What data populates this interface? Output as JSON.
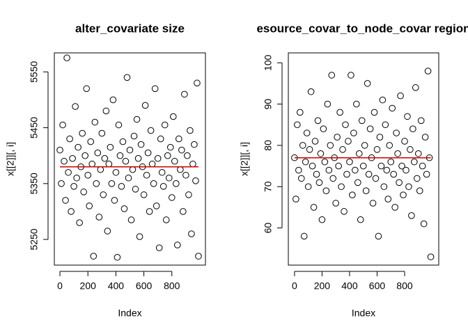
{
  "chart_data": [
    {
      "type": "scatter",
      "title": "alter_covariate size",
      "xlabel": "Index",
      "ylabel": "x[[2]][, i]",
      "x": [
        0,
        10,
        20,
        30,
        40,
        50,
        60,
        70,
        80,
        90,
        100,
        110,
        120,
        130,
        140,
        150,
        160,
        170,
        180,
        190,
        200,
        210,
        220,
        230,
        240,
        250,
        260,
        270,
        280,
        290,
        300,
        310,
        320,
        330,
        340,
        350,
        360,
        370,
        380,
        390,
        400,
        410,
        420,
        430,
        440,
        450,
        460,
        470,
        480,
        490,
        500,
        510,
        520,
        530,
        540,
        550,
        560,
        570,
        580,
        590,
        600,
        610,
        620,
        630,
        640,
        650,
        660,
        670,
        680,
        690,
        700,
        710,
        720,
        730,
        740,
        750,
        760,
        770,
        780,
        790,
        800,
        810,
        820,
        830,
        840,
        850,
        860,
        870,
        880,
        890,
        900,
        910,
        920,
        930,
        940,
        950,
        960,
        970,
        980,
        990
      ],
      "values": [
        5410,
        5350,
        5455,
        5390,
        5320,
        5575,
        5370,
        5430,
        5300,
        5395,
        5345,
        5488,
        5360,
        5415,
        5280,
        5380,
        5440,
        5335,
        5400,
        5520,
        5365,
        5310,
        5425,
        5385,
        5220,
        5460,
        5350,
        5405,
        5290,
        5375,
        5440,
        5330,
        5395,
        5480,
        5265,
        5385,
        5415,
        5350,
        5500,
        5320,
        5370,
        5218,
        5455,
        5400,
        5345,
        5425,
        5305,
        5390,
        5540,
        5360,
        5410,
        5285,
        5375,
        5435,
        5340,
        5465,
        5395,
        5255,
        5420,
        5380,
        5330,
        5490,
        5365,
        5405,
        5300,
        5445,
        5385,
        5350,
        5520,
        5310,
        5395,
        5235,
        5430,
        5370,
        5345,
        5455,
        5285,
        5400,
        5360,
        5415,
        5325,
        5470,
        5390,
        5350,
        5240,
        5430,
        5375,
        5410,
        5300,
        5510,
        5365,
        5400,
        5330,
        5445,
        5260,
        5385,
        5420,
        5355,
        5530,
        5220
      ],
      "marker_color": "#000000",
      "hline": {
        "value": 5380,
        "color": "#cc0000"
      },
      "xlim": [
        -40,
        1040
      ],
      "ylim": [
        5204,
        5584
      ],
      "xticks": [
        0,
        200,
        400,
        600,
        800
      ],
      "yticks": [
        5250,
        5350,
        5450,
        5550
      ]
    },
    {
      "type": "scatter",
      "title": "esource_covar_to_node_covar region",
      "xlabel": "Index",
      "ylabel": "x[[2]][, i]",
      "x": [
        0,
        10,
        20,
        30,
        40,
        50,
        60,
        70,
        80,
        90,
        100,
        110,
        120,
        130,
        140,
        150,
        160,
        170,
        180,
        190,
        200,
        210,
        220,
        230,
        240,
        250,
        260,
        270,
        280,
        290,
        300,
        310,
        320,
        330,
        340,
        350,
        360,
        370,
        380,
        390,
        400,
        410,
        420,
        430,
        440,
        450,
        460,
        470,
        480,
        490,
        500,
        510,
        520,
        530,
        540,
        550,
        560,
        570,
        580,
        590,
        600,
        610,
        620,
        630,
        640,
        650,
        660,
        670,
        680,
        690,
        700,
        710,
        720,
        730,
        740,
        750,
        760,
        770,
        780,
        790,
        800,
        810,
        820,
        830,
        840,
        850,
        860,
        870,
        880,
        890,
        900,
        910,
        920,
        930,
        940,
        950,
        960,
        970,
        980,
        990
      ],
      "values": [
        77,
        67,
        85,
        74,
        88,
        72,
        80,
        58,
        76,
        83,
        70,
        79,
        93,
        75,
        65,
        81,
        73,
        86,
        71,
        78,
        62,
        84,
        76,
        69,
        90,
        74,
        80,
        97,
        72,
        77,
        66,
        82,
        75,
        88,
        70,
        79,
        64,
        85,
        73,
        81,
        76,
        97,
        68,
        83,
        74,
        90,
        71,
        78,
        62,
        86,
        75,
        80,
        69,
        95,
        73,
        84,
        77,
        66,
        88,
        72,
        79,
        58,
        82,
        75,
        91,
        70,
        85,
        74,
        67,
        80,
        76,
        89,
        73,
        65,
        83,
        78,
        71,
        92,
        75,
        68,
        81,
        74,
        87,
        70,
        79,
        63,
        84,
        76,
        94,
        72,
        78,
        69,
        86,
        75,
        61,
        82,
        73,
        98,
        77,
        53
      ],
      "marker_color": "#000000",
      "hline": {
        "value": 77,
        "color": "#cc0000"
      },
      "xlim": [
        -45,
        1048
      ],
      "ylim": [
        51,
        102.4
      ],
      "xticks": [
        0,
        200,
        400,
        600,
        800
      ],
      "yticks": [
        60,
        70,
        80,
        90,
        100
      ]
    }
  ]
}
